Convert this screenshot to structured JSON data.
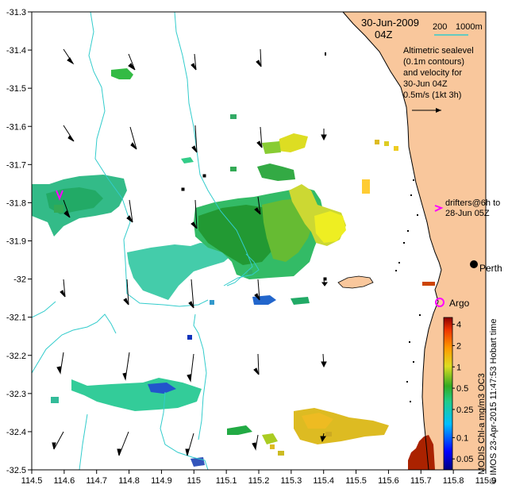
{
  "header": {
    "date": "30-Jun-2009",
    "time": "04Z"
  },
  "scale_bar": {
    "label_200": "200",
    "label_1000": "1000m"
  },
  "legend_text": {
    "line1": "Altimetric sealevel",
    "line2": "(0.1m contours)",
    "line3": "and velocity for",
    "line4": "30-Jun 04Z",
    "velocity_scale": "0.5m/s (1kt 3h)"
  },
  "drifters": {
    "line1": "drifters@6h to",
    "line2": "28-Jun 05Z"
  },
  "places": {
    "perth": "Perth",
    "argo": "Argo"
  },
  "credit": "© IMOS 23-Apr-2015 11:47:53 Hobart time",
  "colorbar": {
    "title": "MODIS Chl-a mg/m3 OC3",
    "ticks": [
      "4",
      "2",
      "1",
      "0.5",
      "0.25",
      "0.1",
      "0.05"
    ],
    "tick_values": [
      4,
      2,
      1,
      0.5,
      0.25,
      0.1,
      0.05
    ]
  },
  "axes": {
    "lon_ticks": [
      "114.5",
      "114.6",
      "114.7",
      "114.8",
      "114.9",
      "115",
      "115.1",
      "115.2",
      "115.3",
      "115.4",
      "115.5",
      "115.6",
      "115.7",
      "115.8",
      "115.9"
    ],
    "lon_values": [
      114.5,
      114.6,
      114.7,
      114.8,
      114.9,
      115.0,
      115.1,
      115.2,
      115.3,
      115.4,
      115.5,
      115.6,
      115.7,
      115.8,
      115.9
    ],
    "lat_ticks": [
      "-31.3",
      "-31.4",
      "-31.5",
      "-31.6",
      "-31.7",
      "-31.8",
      "-31.9",
      "-32",
      "-32.1",
      "-32.2",
      "-32.3",
      "-32.4",
      "-32.5"
    ],
    "lat_values": [
      -31.3,
      -31.4,
      -31.5,
      -31.6,
      -31.7,
      -31.8,
      -31.9,
      -32.0,
      -32.1,
      -32.2,
      -32.3,
      -32.4,
      -32.5
    ]
  },
  "colors": {
    "land": "#f9c79c",
    "contour": "#33cccc",
    "drifter": "#ff00ff",
    "argo": "#ff00ff"
  }
}
